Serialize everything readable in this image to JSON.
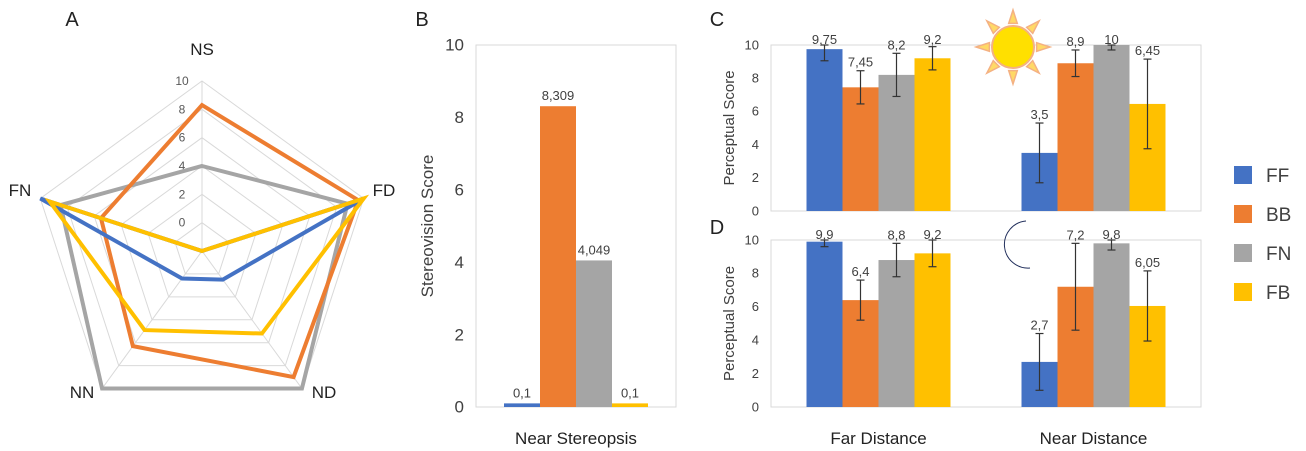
{
  "colors": {
    "FF": "#4472C4",
    "BB": "#ED7D31",
    "FN": "#A5A5A5",
    "FB": "#FFC000"
  },
  "legend": {
    "items": [
      "FF",
      "BB",
      "FN",
      "FB"
    ]
  },
  "panels": {
    "A": "A",
    "B": "B",
    "C": "C",
    "D": "D"
  },
  "icons": {
    "sun": "sun-icon",
    "moon": "crescent-moon-icon"
  },
  "chart_data": [
    {
      "panel": "A",
      "type": "radar",
      "axes": [
        "NS",
        "FD",
        "ND",
        "NN",
        "FN"
      ],
      "rlim": [
        -2,
        10
      ],
      "ticks": [
        "0",
        "2",
        "4",
        "6",
        "8",
        "10"
      ],
      "tick_values": [
        0,
        2,
        4,
        6,
        8,
        10
      ],
      "series": [
        {
          "key": "FF",
          "values": [
            -2,
            10,
            0.5,
            0.4,
            10
          ]
        },
        {
          "key": "BB",
          "values": [
            8.3,
            9.6,
            9.0,
            6.3,
            5.5
          ]
        },
        {
          "key": "FN",
          "values": [
            4.0,
            8.8,
            10,
            10,
            8.5
          ]
        },
        {
          "key": "FB",
          "values": [
            -2,
            10,
            5.2,
            4.9,
            9.3
          ]
        }
      ]
    },
    {
      "panel": "B",
      "type": "bar",
      "categories": [
        "Near Stereopsis"
      ],
      "ylabel": "Stereovision Score",
      "ylim": [
        0,
        10
      ],
      "yticks": [
        "0",
        "2",
        "4",
        "6",
        "8",
        "10"
      ],
      "ytick_values": [
        0,
        2,
        4,
        6,
        8,
        10
      ],
      "series": [
        {
          "key": "FF",
          "values": [
            0.1
          ],
          "labels": [
            "0,1"
          ]
        },
        {
          "key": "BB",
          "values": [
            8.309
          ],
          "labels": [
            "8,309"
          ]
        },
        {
          "key": "FN",
          "values": [
            4.049
          ],
          "labels": [
            "4,049"
          ]
        },
        {
          "key": "FB",
          "values": [
            0.1
          ],
          "labels": [
            "0,1"
          ]
        }
      ]
    },
    {
      "panel": "C",
      "type": "bar",
      "categories": [
        "Far Distance",
        "Near Distance"
      ],
      "ylabel": "Perceptual Score",
      "ylim": [
        0,
        10
      ],
      "yticks": [
        "0",
        "2",
        "4",
        "6",
        "8",
        "10"
      ],
      "ytick_values": [
        0,
        2,
        4,
        6,
        8,
        10
      ],
      "series": [
        {
          "key": "FF",
          "values": [
            9.75,
            3.5
          ],
          "labels": [
            "9,75",
            "3,5"
          ],
          "err": [
            0.7,
            1.8
          ]
        },
        {
          "key": "BB",
          "values": [
            7.45,
            8.9
          ],
          "labels": [
            "7,45",
            "8,9"
          ],
          "err": [
            1.0,
            0.8
          ]
        },
        {
          "key": "FN",
          "values": [
            8.2,
            10
          ],
          "labels": [
            "8,2",
            "10"
          ],
          "err": [
            1.3,
            0.3
          ]
        },
        {
          "key": "FB",
          "values": [
            9.2,
            6.45
          ],
          "labels": [
            "9,2",
            "6,45"
          ],
          "err": [
            0.7,
            2.7
          ]
        }
      ]
    },
    {
      "panel": "D",
      "type": "bar",
      "categories": [
        "Far Distance",
        "Near Distance"
      ],
      "ylabel": "Perceptual Score",
      "ylim": [
        0,
        10
      ],
      "yticks": [
        "0",
        "2",
        "4",
        "6",
        "8",
        "10"
      ],
      "ytick_values": [
        0,
        2,
        4,
        6,
        8,
        10
      ],
      "series": [
        {
          "key": "FF",
          "values": [
            9.9,
            2.7
          ],
          "labels": [
            "9,9",
            "2,7"
          ],
          "err": [
            0.3,
            1.7
          ]
        },
        {
          "key": "BB",
          "values": [
            6.4,
            7.2
          ],
          "labels": [
            "6,4",
            "7,2"
          ],
          "err": [
            1.2,
            2.6
          ]
        },
        {
          "key": "FN",
          "values": [
            8.8,
            9.8
          ],
          "labels": [
            "8,8",
            "9,8"
          ],
          "err": [
            1.0,
            0.4
          ]
        },
        {
          "key": "FB",
          "values": [
            9.2,
            6.05
          ],
          "labels": [
            "9,2",
            "6,05"
          ],
          "err": [
            0.8,
            2.1
          ]
        }
      ]
    }
  ]
}
